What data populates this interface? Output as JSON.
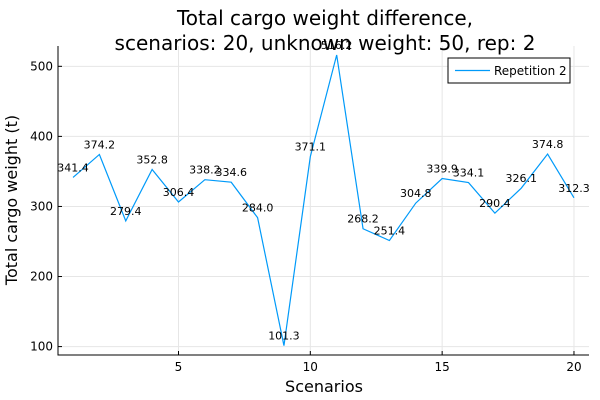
{
  "chart_data": {
    "type": "line",
    "title_lines": [
      "Total cargo weight difference,",
      "scenarios: 20, unknown weight: 50, rep: 2"
    ],
    "xlabel": "Scenarios",
    "ylabel": "Total cargo weight (t)",
    "xlim": [
      0.43,
      20.57
    ],
    "ylim": [
      88.0,
      529.0
    ],
    "x_ticks": [
      5,
      10,
      15,
      20
    ],
    "y_ticks": [
      100,
      200,
      300,
      400,
      500
    ],
    "grid": true,
    "legend_position": "top-right",
    "series": [
      {
        "name": "Repetition 2",
        "color": "#009af9",
        "x": [
          1,
          2,
          3,
          4,
          5,
          6,
          7,
          8,
          9,
          10,
          11,
          12,
          13,
          14,
          15,
          16,
          17,
          18,
          19,
          20
        ],
        "y": [
          341.4,
          374.2,
          279.4,
          352.8,
          306.4,
          338.2,
          334.6,
          284.0,
          101.3,
          371.1,
          516.2,
          268.2,
          251.4,
          304.8,
          339.9,
          334.1,
          290.4,
          326.1,
          374.8,
          312.3
        ],
        "labels": [
          "341.4",
          "374.2",
          "279.4",
          "352.8",
          "306.4",
          "338.2",
          "334.6",
          "284.0",
          "101.3",
          "371.1",
          "516.2",
          "268.2",
          "251.4",
          "304.8",
          "339.9",
          "334.1",
          "290.4",
          "326.1",
          "374.8",
          "312.3"
        ]
      }
    ]
  }
}
